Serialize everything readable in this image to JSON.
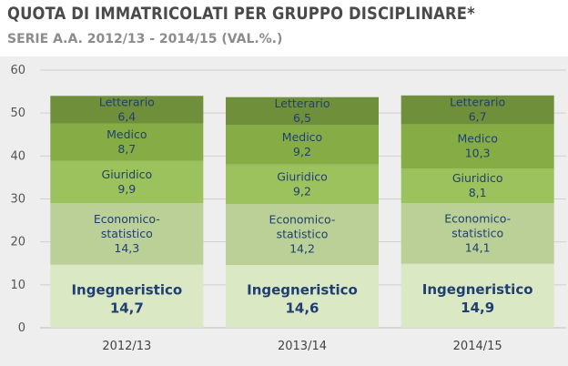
{
  "header": {
    "title": "QUOTA DI IMMATRICOLATI PER GRUPPO DISCIPLINARE*",
    "subtitle": "SERIE A.A. 2012/13 - 2014/15 (VAL.%.)"
  },
  "chart_data": {
    "type": "bar",
    "stacked": true,
    "title": "QUOTA DI IMMATRICOLATI PER GRUPPO DISCIPLINARE*",
    "subtitle": "SERIE A.A. 2012/13 - 2014/15 (VAL.%.)",
    "xlabel": "",
    "ylabel": "",
    "ylim": [
      0,
      60
    ],
    "yticks": [
      0,
      10,
      20,
      30,
      40,
      50,
      60
    ],
    "grid": true,
    "categories": [
      "2012/13",
      "2013/14",
      "2014/15"
    ],
    "series": [
      {
        "name": "Ingegneristico",
        "values": [
          14.7,
          14.6,
          14.9
        ],
        "labels": [
          "14,7",
          "14,6",
          "14,9"
        ],
        "color": "#dbe8c4"
      },
      {
        "name": "Economico-statistico",
        "label_lines": [
          "Economico-",
          "statistico"
        ],
        "values": [
          14.3,
          14.2,
          14.1
        ],
        "labels": [
          "14,3",
          "14,2",
          "14,1"
        ],
        "color": "#bad096"
      },
      {
        "name": "Giuridico",
        "values": [
          9.9,
          9.2,
          8.1
        ],
        "labels": [
          "9,9",
          "9,2",
          "8,1"
        ],
        "color": "#9bc25c"
      },
      {
        "name": "Medico",
        "values": [
          8.7,
          9.2,
          10.3
        ],
        "labels": [
          "8,7",
          "9,2",
          "10,3"
        ],
        "color": "#86ad45"
      },
      {
        "name": "Letterario",
        "values": [
          6.4,
          6.5,
          6.7
        ],
        "labels": [
          "6,4",
          "6,5",
          "6,7"
        ],
        "color": "#6f8f3a"
      }
    ]
  }
}
